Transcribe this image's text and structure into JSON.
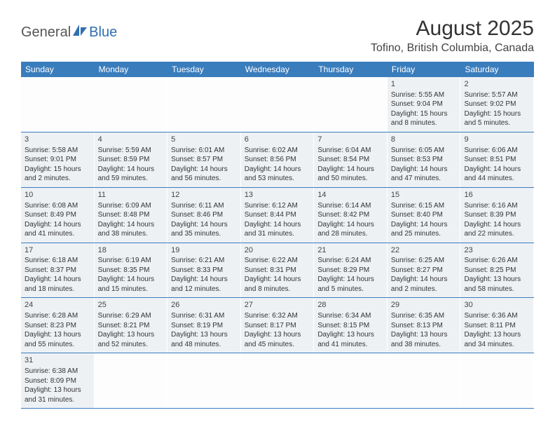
{
  "logo": {
    "text1": "General",
    "text2": "Blue"
  },
  "header": {
    "month_title": "August 2025",
    "location": "Tofino, British Columbia, Canada"
  },
  "colors": {
    "header_bar": "#3a7dbd",
    "day_bg": "#eef1f4",
    "logo_accent": "#2f6fb0"
  },
  "weekdays": [
    "Sunday",
    "Monday",
    "Tuesday",
    "Wednesday",
    "Thursday",
    "Friday",
    "Saturday"
  ],
  "weeks": [
    [
      null,
      null,
      null,
      null,
      null,
      {
        "n": "1",
        "sr": "Sunrise: 5:55 AM",
        "ss": "Sunset: 9:04 PM",
        "d1": "Daylight: 15 hours",
        "d2": "and 8 minutes."
      },
      {
        "n": "2",
        "sr": "Sunrise: 5:57 AM",
        "ss": "Sunset: 9:02 PM",
        "d1": "Daylight: 15 hours",
        "d2": "and 5 minutes."
      }
    ],
    [
      {
        "n": "3",
        "sr": "Sunrise: 5:58 AM",
        "ss": "Sunset: 9:01 PM",
        "d1": "Daylight: 15 hours",
        "d2": "and 2 minutes."
      },
      {
        "n": "4",
        "sr": "Sunrise: 5:59 AM",
        "ss": "Sunset: 8:59 PM",
        "d1": "Daylight: 14 hours",
        "d2": "and 59 minutes."
      },
      {
        "n": "5",
        "sr": "Sunrise: 6:01 AM",
        "ss": "Sunset: 8:57 PM",
        "d1": "Daylight: 14 hours",
        "d2": "and 56 minutes."
      },
      {
        "n": "6",
        "sr": "Sunrise: 6:02 AM",
        "ss": "Sunset: 8:56 PM",
        "d1": "Daylight: 14 hours",
        "d2": "and 53 minutes."
      },
      {
        "n": "7",
        "sr": "Sunrise: 6:04 AM",
        "ss": "Sunset: 8:54 PM",
        "d1": "Daylight: 14 hours",
        "d2": "and 50 minutes."
      },
      {
        "n": "8",
        "sr": "Sunrise: 6:05 AM",
        "ss": "Sunset: 8:53 PM",
        "d1": "Daylight: 14 hours",
        "d2": "and 47 minutes."
      },
      {
        "n": "9",
        "sr": "Sunrise: 6:06 AM",
        "ss": "Sunset: 8:51 PM",
        "d1": "Daylight: 14 hours",
        "d2": "and 44 minutes."
      }
    ],
    [
      {
        "n": "10",
        "sr": "Sunrise: 6:08 AM",
        "ss": "Sunset: 8:49 PM",
        "d1": "Daylight: 14 hours",
        "d2": "and 41 minutes."
      },
      {
        "n": "11",
        "sr": "Sunrise: 6:09 AM",
        "ss": "Sunset: 8:48 PM",
        "d1": "Daylight: 14 hours",
        "d2": "and 38 minutes."
      },
      {
        "n": "12",
        "sr": "Sunrise: 6:11 AM",
        "ss": "Sunset: 8:46 PM",
        "d1": "Daylight: 14 hours",
        "d2": "and 35 minutes."
      },
      {
        "n": "13",
        "sr": "Sunrise: 6:12 AM",
        "ss": "Sunset: 8:44 PM",
        "d1": "Daylight: 14 hours",
        "d2": "and 31 minutes."
      },
      {
        "n": "14",
        "sr": "Sunrise: 6:14 AM",
        "ss": "Sunset: 8:42 PM",
        "d1": "Daylight: 14 hours",
        "d2": "and 28 minutes."
      },
      {
        "n": "15",
        "sr": "Sunrise: 6:15 AM",
        "ss": "Sunset: 8:40 PM",
        "d1": "Daylight: 14 hours",
        "d2": "and 25 minutes."
      },
      {
        "n": "16",
        "sr": "Sunrise: 6:16 AM",
        "ss": "Sunset: 8:39 PM",
        "d1": "Daylight: 14 hours",
        "d2": "and 22 minutes."
      }
    ],
    [
      {
        "n": "17",
        "sr": "Sunrise: 6:18 AM",
        "ss": "Sunset: 8:37 PM",
        "d1": "Daylight: 14 hours",
        "d2": "and 18 minutes."
      },
      {
        "n": "18",
        "sr": "Sunrise: 6:19 AM",
        "ss": "Sunset: 8:35 PM",
        "d1": "Daylight: 14 hours",
        "d2": "and 15 minutes."
      },
      {
        "n": "19",
        "sr": "Sunrise: 6:21 AM",
        "ss": "Sunset: 8:33 PM",
        "d1": "Daylight: 14 hours",
        "d2": "and 12 minutes."
      },
      {
        "n": "20",
        "sr": "Sunrise: 6:22 AM",
        "ss": "Sunset: 8:31 PM",
        "d1": "Daylight: 14 hours",
        "d2": "and 8 minutes."
      },
      {
        "n": "21",
        "sr": "Sunrise: 6:24 AM",
        "ss": "Sunset: 8:29 PM",
        "d1": "Daylight: 14 hours",
        "d2": "and 5 minutes."
      },
      {
        "n": "22",
        "sr": "Sunrise: 6:25 AM",
        "ss": "Sunset: 8:27 PM",
        "d1": "Daylight: 14 hours",
        "d2": "and 2 minutes."
      },
      {
        "n": "23",
        "sr": "Sunrise: 6:26 AM",
        "ss": "Sunset: 8:25 PM",
        "d1": "Daylight: 13 hours",
        "d2": "and 58 minutes."
      }
    ],
    [
      {
        "n": "24",
        "sr": "Sunrise: 6:28 AM",
        "ss": "Sunset: 8:23 PM",
        "d1": "Daylight: 13 hours",
        "d2": "and 55 minutes."
      },
      {
        "n": "25",
        "sr": "Sunrise: 6:29 AM",
        "ss": "Sunset: 8:21 PM",
        "d1": "Daylight: 13 hours",
        "d2": "and 52 minutes."
      },
      {
        "n": "26",
        "sr": "Sunrise: 6:31 AM",
        "ss": "Sunset: 8:19 PM",
        "d1": "Daylight: 13 hours",
        "d2": "and 48 minutes."
      },
      {
        "n": "27",
        "sr": "Sunrise: 6:32 AM",
        "ss": "Sunset: 8:17 PM",
        "d1": "Daylight: 13 hours",
        "d2": "and 45 minutes."
      },
      {
        "n": "28",
        "sr": "Sunrise: 6:34 AM",
        "ss": "Sunset: 8:15 PM",
        "d1": "Daylight: 13 hours",
        "d2": "and 41 minutes."
      },
      {
        "n": "29",
        "sr": "Sunrise: 6:35 AM",
        "ss": "Sunset: 8:13 PM",
        "d1": "Daylight: 13 hours",
        "d2": "and 38 minutes."
      },
      {
        "n": "30",
        "sr": "Sunrise: 6:36 AM",
        "ss": "Sunset: 8:11 PM",
        "d1": "Daylight: 13 hours",
        "d2": "and 34 minutes."
      }
    ],
    [
      {
        "n": "31",
        "sr": "Sunrise: 6:38 AM",
        "ss": "Sunset: 8:09 PM",
        "d1": "Daylight: 13 hours",
        "d2": "and 31 minutes."
      },
      null,
      null,
      null,
      null,
      null,
      null
    ]
  ]
}
